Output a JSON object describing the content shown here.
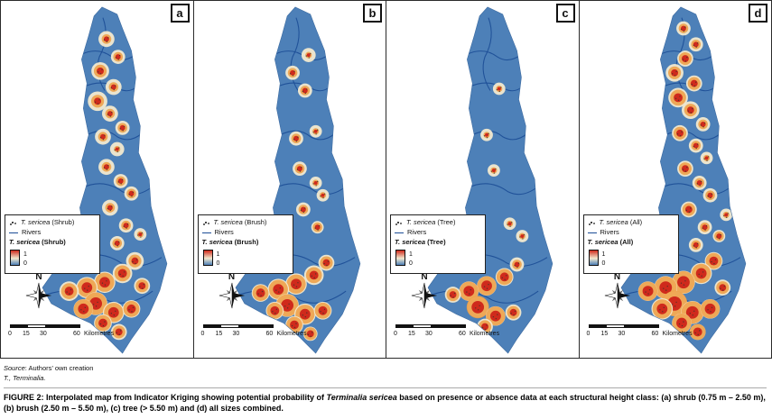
{
  "figure": {
    "panels": [
      {
        "letter": "a",
        "suffix": "(Shrub)",
        "hotspots": [
          [
            100,
            42,
            9,
            3
          ],
          [
            113,
            62,
            8,
            3
          ],
          [
            93,
            78,
            10,
            4
          ],
          [
            108,
            96,
            9,
            3
          ],
          [
            90,
            112,
            11,
            4
          ],
          [
            104,
            126,
            9,
            3
          ],
          [
            118,
            142,
            8,
            3
          ],
          [
            96,
            152,
            9,
            3
          ],
          [
            112,
            166,
            8,
            2
          ],
          [
            100,
            186,
            9,
            3
          ],
          [
            116,
            202,
            8,
            3
          ],
          [
            128,
            216,
            8,
            3
          ],
          [
            104,
            232,
            9,
            3
          ],
          [
            122,
            252,
            8,
            3
          ],
          [
            138,
            262,
            7,
            2
          ],
          [
            112,
            272,
            8,
            3
          ],
          [
            132,
            292,
            10,
            4
          ],
          [
            118,
            306,
            11,
            5
          ],
          [
            98,
            316,
            12,
            6
          ],
          [
            78,
            322,
            12,
            6
          ],
          [
            58,
            326,
            11,
            5
          ],
          [
            88,
            340,
            13,
            7
          ],
          [
            108,
            350,
            12,
            6
          ],
          [
            128,
            346,
            10,
            5
          ],
          [
            74,
            346,
            11,
            6
          ],
          [
            96,
            362,
            10,
            5
          ],
          [
            114,
            372,
            9,
            4
          ],
          [
            140,
            320,
            9,
            4
          ]
        ]
      },
      {
        "letter": "b",
        "suffix": "(Brush)",
        "hotspots": [
          [
            110,
            60,
            8,
            2
          ],
          [
            92,
            80,
            8,
            3
          ],
          [
            106,
            100,
            8,
            3
          ],
          [
            118,
            146,
            7,
            2
          ],
          [
            96,
            154,
            8,
            3
          ],
          [
            100,
            188,
            8,
            3
          ],
          [
            118,
            204,
            7,
            2
          ],
          [
            126,
            218,
            7,
            2
          ],
          [
            104,
            234,
            8,
            3
          ],
          [
            120,
            254,
            7,
            3
          ],
          [
            130,
            294,
            9,
            4
          ],
          [
            116,
            308,
            11,
            5
          ],
          [
            96,
            318,
            12,
            6
          ],
          [
            76,
            324,
            12,
            6
          ],
          [
            56,
            328,
            10,
            5
          ],
          [
            86,
            342,
            13,
            7
          ],
          [
            106,
            352,
            12,
            6
          ],
          [
            126,
            348,
            10,
            5
          ],
          [
            72,
            348,
            10,
            5
          ],
          [
            94,
            364,
            10,
            5
          ],
          [
            112,
            374,
            8,
            4
          ]
        ]
      },
      {
        "letter": "c",
        "suffix": "(Tree)",
        "hotspots": [
          [
            108,
            98,
            7,
            2
          ],
          [
            94,
            150,
            7,
            2
          ],
          [
            102,
            190,
            7,
            2
          ],
          [
            120,
            250,
            7,
            2
          ],
          [
            134,
            264,
            7,
            2
          ],
          [
            128,
            296,
            8,
            3
          ],
          [
            114,
            310,
            10,
            5
          ],
          [
            94,
            320,
            11,
            6
          ],
          [
            74,
            326,
            11,
            6
          ],
          [
            56,
            330,
            9,
            4
          ],
          [
            84,
            344,
            12,
            7
          ],
          [
            104,
            354,
            11,
            6
          ],
          [
            124,
            350,
            9,
            4
          ],
          [
            92,
            366,
            9,
            4
          ]
        ]
      },
      {
        "letter": "d",
        "suffix": "(All)",
        "hotspots": [
          [
            98,
            30,
            8,
            3
          ],
          [
            112,
            48,
            8,
            3
          ],
          [
            100,
            64,
            9,
            4
          ],
          [
            88,
            80,
            10,
            4
          ],
          [
            110,
            92,
            9,
            4
          ],
          [
            92,
            108,
            11,
            5
          ],
          [
            106,
            122,
            10,
            4
          ],
          [
            120,
            138,
            8,
            3
          ],
          [
            94,
            148,
            9,
            4
          ],
          [
            112,
            162,
            8,
            3
          ],
          [
            124,
            176,
            7,
            2
          ],
          [
            100,
            188,
            9,
            4
          ],
          [
            116,
            204,
            8,
            3
          ],
          [
            128,
            218,
            8,
            3
          ],
          [
            104,
            234,
            9,
            4
          ],
          [
            122,
            254,
            8,
            3
          ],
          [
            138,
            264,
            7,
            3
          ],
          [
            112,
            274,
            8,
            3
          ],
          [
            146,
            240,
            7,
            2
          ],
          [
            132,
            292,
            10,
            5
          ],
          [
            118,
            306,
            12,
            6
          ],
          [
            98,
            316,
            13,
            7
          ],
          [
            78,
            322,
            13,
            7
          ],
          [
            58,
            326,
            11,
            6
          ],
          [
            88,
            340,
            14,
            8
          ],
          [
            108,
            350,
            13,
            7
          ],
          [
            128,
            346,
            11,
            6
          ],
          [
            74,
            346,
            12,
            6
          ],
          [
            96,
            362,
            11,
            6
          ],
          [
            114,
            372,
            9,
            5
          ],
          [
            142,
            322,
            9,
            4
          ]
        ]
      }
    ],
    "legend": {
      "species": "T. sericea",
      "rivers_label": "Rivers",
      "ramp_top": "1",
      "ramp_bottom": "0"
    },
    "compass_label": "N",
    "scalebar": {
      "ticks": [
        "0",
        "15",
        "30",
        "60"
      ],
      "unit": "Kilometres"
    },
    "colors": {
      "map_fill": "#4d80b8",
      "river": "#1c4d96",
      "halo": "#f2e9cf",
      "mid": "#ef9d42",
      "core": "#cf2a1c",
      "speck": "#3a352c"
    }
  },
  "notes": {
    "source_label": "Source",
    "source_rest": ": Authors’ own creation",
    "abbrev_note": "T., Terminalia."
  },
  "caption": {
    "label": "FIGURE 2:",
    "before": " Interpolated map from Indicator Kriging showing potential probability of ",
    "species": "Terminalia sericea",
    "after": " based on presence or absence data at each structural height class: (a) shrub (0.75 m – 2.50 m), (b) brush (2.50 m – 5.50 m), (c) tree (> 5.50 m) and (d) all sizes combined."
  }
}
